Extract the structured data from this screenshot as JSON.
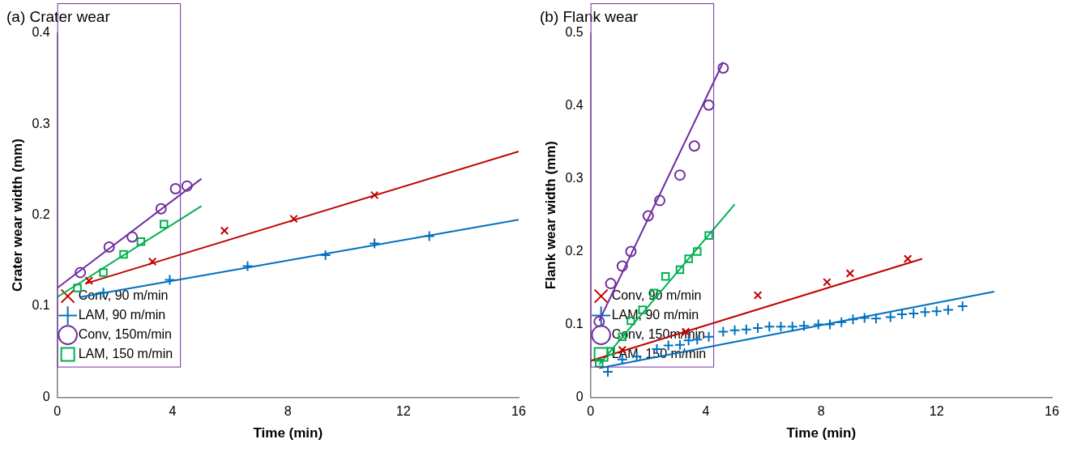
{
  "chart_data": [
    {
      "type": "scatter",
      "title": "(a) Crater wear",
      "x_label": "Time (min)",
      "y_label": "Crater wear width (mm)",
      "xlim": [
        0,
        16
      ],
      "xticks": [
        0,
        4,
        8,
        12,
        16
      ],
      "ylim": [
        0,
        0.4
      ],
      "yticks": [
        0,
        0.1,
        0.2,
        0.3,
        0.4
      ],
      "grid": false,
      "legend": "top right",
      "series": [
        {
          "name": "Conv, 90 m/min",
          "color": "#c00000",
          "marker": "x",
          "x": [
            1.1,
            3.3,
            5.8,
            8.2,
            11.0
          ],
          "values": [
            0.128,
            0.149,
            0.183,
            0.196,
            0.222
          ],
          "fit": {
            "x": [
              1.0,
              16.0
            ],
            "values": [
              0.125,
              0.27
            ]
          }
        },
        {
          "name": "LAM, 90 m/min",
          "color": "#0070c0",
          "marker": "plus",
          "x": [
            1.6,
            3.9,
            6.6,
            9.3,
            11.0,
            12.9
          ],
          "values": [
            0.115,
            0.129,
            0.144,
            0.156,
            0.169,
            0.177
          ],
          "fit": {
            "x": [
              0.8,
              16.0
            ],
            "values": [
              0.11,
              0.195
            ]
          }
        },
        {
          "name": "Conv, 150m/min",
          "color": "#7030a0",
          "marker": "circle",
          "x": [
            0.8,
            1.8,
            2.6,
            3.6,
            4.1,
            4.5
          ],
          "values": [
            0.137,
            0.165,
            0.176,
            0.207,
            0.229,
            0.232
          ],
          "fit": {
            "x": [
              0.0,
              5.0
            ],
            "values": [
              0.12,
              0.24
            ]
          }
        },
        {
          "name": "LAM, 150 m/min",
          "color": "#00b050",
          "marker": "square",
          "x": [
            0.7,
            1.6,
            2.3,
            2.9,
            3.7
          ],
          "values": [
            0.12,
            0.137,
            0.157,
            0.171,
            0.19
          ],
          "fit": {
            "x": [
              0.0,
              5.0
            ],
            "values": [
              0.11,
              0.21
            ]
          }
        }
      ]
    },
    {
      "type": "scatter",
      "title": "(b) Flank wear",
      "x_label": "Time (min)",
      "y_label": "Flank wear width (mm)",
      "xlim": [
        0,
        16
      ],
      "xticks": [
        0,
        4,
        8,
        12,
        16
      ],
      "ylim": [
        0,
        0.5
      ],
      "yticks": [
        0,
        0.1,
        0.2,
        0.3,
        0.4,
        0.5
      ],
      "grid": false,
      "legend": "top right",
      "series": [
        {
          "name": "Conv, 90 m/min",
          "color": "#c00000",
          "marker": "x",
          "x": [
            1.1,
            3.3,
            5.8,
            8.2,
            9.0,
            11.0
          ],
          "values": [
            0.065,
            0.09,
            0.14,
            0.158,
            0.17,
            0.19
          ],
          "fit": {
            "x": [
              0.0,
              11.5
            ],
            "values": [
              0.05,
              0.19
            ]
          }
        },
        {
          "name": "LAM, 90 m/min",
          "color": "#0070c0",
          "marker": "plus",
          "x": [
            0.6,
            1.1,
            1.6,
            2.3,
            2.7,
            3.1,
            3.4,
            3.7,
            4.1,
            4.6,
            5.0,
            5.4,
            5.8,
            6.2,
            6.6,
            7.0,
            7.4,
            7.9,
            8.3,
            8.7,
            9.1,
            9.5,
            9.9,
            10.4,
            10.8,
            11.2,
            11.6,
            12.0,
            12.4,
            12.9
          ],
          "values": [
            0.035,
            0.052,
            0.056,
            0.066,
            0.071,
            0.072,
            0.078,
            0.079,
            0.083,
            0.09,
            0.092,
            0.093,
            0.095,
            0.097,
            0.097,
            0.097,
            0.098,
            0.1,
            0.1,
            0.103,
            0.107,
            0.109,
            0.108,
            0.11,
            0.114,
            0.115,
            0.117,
            0.118,
            0.12,
            0.125
          ],
          "fit": {
            "x": [
              0.3,
              14.0
            ],
            "values": [
              0.04,
              0.145
            ]
          }
        },
        {
          "name": "Conv, 150m/min",
          "color": "#7030a0",
          "marker": "circle",
          "x": [
            0.3,
            0.7,
            1.1,
            1.4,
            2.0,
            2.4,
            3.1,
            3.6,
            4.1,
            4.6
          ],
          "values": [
            0.104,
            0.156,
            0.18,
            0.2,
            0.249,
            0.27,
            0.305,
            0.345,
            0.401,
            0.452
          ],
          "fit": {
            "x": [
              0.3,
              4.6
            ],
            "values": [
              0.105,
              0.46
            ]
          }
        },
        {
          "name": "LAM, 150 m/min",
          "color": "#00b050",
          "marker": "square",
          "x": [
            0.3,
            0.7,
            1.1,
            1.4,
            1.8,
            2.2,
            2.6,
            3.1,
            3.4,
            3.7,
            4.1
          ],
          "values": [
            0.047,
            0.063,
            0.083,
            0.105,
            0.12,
            0.143,
            0.166,
            0.175,
            0.19,
            0.2,
            0.222
          ],
          "fit": {
            "x": [
              0.3,
              5.0
            ],
            "values": [
              0.045,
              0.265
            ]
          }
        }
      ]
    }
  ]
}
